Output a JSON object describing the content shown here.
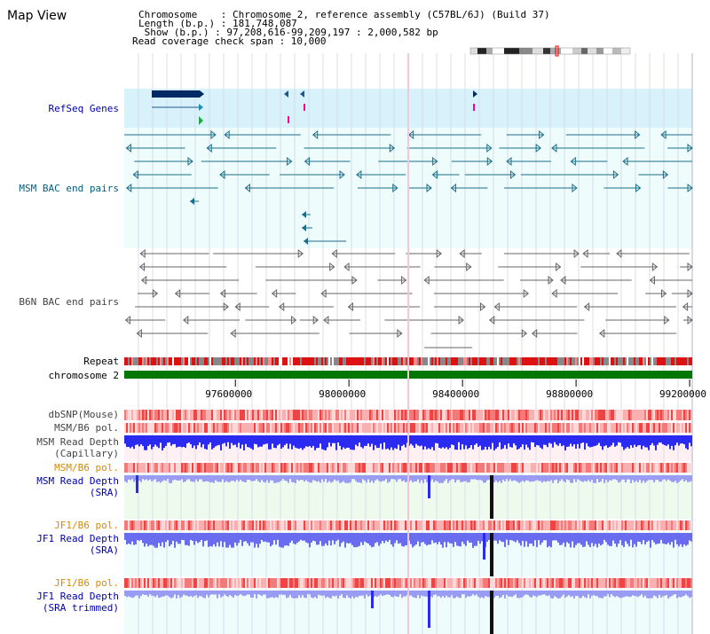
{
  "page": {
    "title": "Map View"
  },
  "header": {
    "chromosome_line": "Chromosome    : Chromosome 2, reference assembly (C57BL/6J) (Build 37)",
    "length_line": "Length (b.p.) : 181,748,087",
    "show_line": " Show (b.p.) : 97,208,616-99,209,197 : 2,000,582 bp",
    "span_line": "Read coverage check span : 10,000"
  },
  "tracks": {
    "refseq": "RefSeq Genes",
    "msm_bac": "MSM BAC end pairs",
    "b6n_bac": "B6N BAC end pairs",
    "repeat": "Repeat",
    "chromosome": "chromosome 2",
    "dbsnp": "dbSNP(Mouse)",
    "msm_b6_pol": "MSM/B6 pol.",
    "msm_read_depth_cap_1": "MSM Read Depth",
    "msm_read_depth_cap_2": "(Capillary)",
    "msm_b6_pol_2": "MSM/B6 pol.",
    "msm_read_depth_sra_1": "MSM Read Depth",
    "msm_read_depth_sra_2": "(SRA)",
    "jf1_b6_pol": "JF1/B6 pol.",
    "jf1_read_depth_sra_1": "JF1 Read Depth",
    "jf1_read_depth_sra_2": "(SRA)",
    "jf1_b6_pol_2": "JF1/B6 pol.",
    "jf1_read_depth_trim_1": "JF1 Read Depth",
    "jf1_read_depth_trim_2": "(SRA trimmed)"
  },
  "axis": {
    "ticks": [
      "97600000",
      "98000000",
      "98400000",
      "98800000",
      "99200000"
    ],
    "tick_bp": [
      97600000,
      98000000,
      98400000,
      98800000,
      99200000
    ],
    "range_bp": [
      97208616,
      99209197
    ]
  },
  "colors": {
    "track_bg_light": "#eefcfc",
    "refseq_bg": "#d8f2fb",
    "gene_navy": "#002a66",
    "teal_features": "#1b6e8a",
    "gray_features": "#666666",
    "repeat_red": "#dd1111",
    "chromosome_green": "#007700",
    "depth_blue": "#2a2af0",
    "depth_light": "#9a9cf4",
    "pol_red": "#ee4444",
    "pol_pink": "#f8b0b0"
  }
}
